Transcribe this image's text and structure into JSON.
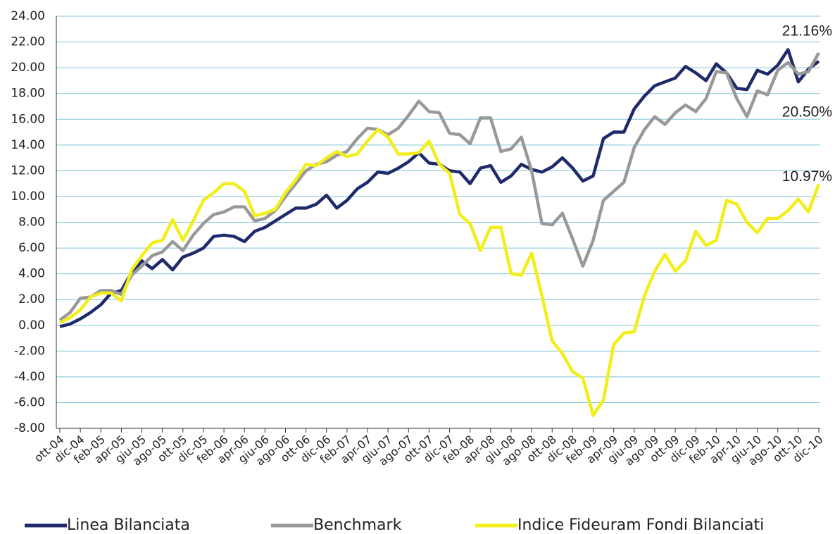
{
  "chart_data": {
    "type": "line",
    "categories": [
      "ott-04",
      null,
      "dic-04",
      null,
      "feb-05",
      null,
      "apr-05",
      null,
      "giu-05",
      null,
      "ago-05",
      null,
      "ott-05",
      null,
      "dic-05",
      null,
      "feb-06",
      null,
      "apr-06",
      null,
      "giu-06",
      null,
      "ago-06",
      null,
      "ott-06",
      null,
      "dic-06",
      null,
      "feb-07",
      null,
      "apr-07",
      null,
      "giu-07",
      null,
      "ago-07",
      null,
      "ott-07",
      null,
      "dic-07",
      null,
      "feb-08",
      null,
      "apr-08",
      null,
      "giu-08",
      null,
      "ago-08",
      null,
      "ott-08",
      null,
      "dic-08",
      null,
      "feb-09",
      null,
      "apr-09",
      null,
      "giu-09",
      null,
      "ago-09",
      null,
      "ott-09",
      null,
      "dic-09",
      null,
      "feb-10",
      null,
      "apr-10",
      null,
      "giu-10",
      null,
      "ago-10",
      null,
      "ott-10",
      null,
      "dic-10"
    ],
    "series": [
      {
        "name": "Linea Bilanciata",
        "color": "#1f2a6b",
        "end_label": "20.50%",
        "values": [
          -0.1,
          0.1,
          0.5,
          1.0,
          1.6,
          2.5,
          2.7,
          4.1,
          5.0,
          4.4,
          5.1,
          4.3,
          5.3,
          5.6,
          6.0,
          6.9,
          7.0,
          6.9,
          6.5,
          7.3,
          7.6,
          8.1,
          8.6,
          9.1,
          9.1,
          9.4,
          10.1,
          9.1,
          9.7,
          10.6,
          11.1,
          11.9,
          11.8,
          12.2,
          12.7,
          13.4,
          12.6,
          12.5,
          12.0,
          11.9,
          11.0,
          12.2,
          12.4,
          11.1,
          11.6,
          12.5,
          12.1,
          11.9,
          12.3,
          13.0,
          12.2,
          11.2,
          11.6,
          14.5,
          15.0,
          15.0,
          16.8,
          17.8,
          18.6,
          18.9,
          19.2,
          20.1,
          19.6,
          19.0,
          20.3,
          19.6,
          18.4,
          18.3,
          19.8,
          19.5,
          20.2,
          21.4,
          18.9,
          19.9,
          20.5
        ]
      },
      {
        "name": "Benchmark",
        "color": "#999999",
        "end_label": "21.16%",
        "values": [
          0.4,
          1.0,
          2.1,
          2.2,
          2.7,
          2.7,
          2.4,
          3.9,
          4.6,
          5.4,
          5.7,
          6.5,
          5.8,
          7.0,
          7.9,
          8.6,
          8.8,
          9.2,
          9.2,
          8.1,
          8.3,
          8.9,
          10.0,
          11.0,
          12.0,
          12.5,
          12.7,
          13.2,
          13.5,
          14.5,
          15.3,
          15.2,
          14.8,
          15.3,
          16.3,
          17.4,
          16.6,
          16.5,
          14.9,
          14.8,
          14.1,
          16.1,
          16.1,
          13.5,
          13.7,
          14.6,
          12.0,
          7.9,
          7.8,
          8.7,
          6.7,
          4.6,
          6.6,
          9.7,
          10.4,
          11.1,
          13.8,
          15.2,
          16.2,
          15.6,
          16.5,
          17.1,
          16.6,
          17.6,
          19.7,
          19.6,
          17.6,
          16.2,
          18.2,
          17.9,
          19.8,
          20.4,
          19.5,
          19.7,
          21.16
        ]
      },
      {
        "name": "Indice Fideuram Fondi Bilanciati",
        "color": "#f2ee1a",
        "end_label": "10.97%",
        "values": [
          0.2,
          0.6,
          1.2,
          2.2,
          2.5,
          2.5,
          1.9,
          4.3,
          5.4,
          6.4,
          6.6,
          8.2,
          6.6,
          8.1,
          9.7,
          10.3,
          11.0,
          11.0,
          10.4,
          8.5,
          8.7,
          9.0,
          10.3,
          11.3,
          12.5,
          12.4,
          13.0,
          13.5,
          13.1,
          13.3,
          14.3,
          15.2,
          14.6,
          13.3,
          13.3,
          13.4,
          14.3,
          12.5,
          11.8,
          8.6,
          7.9,
          5.8,
          7.6,
          7.6,
          4.0,
          3.9,
          5.6,
          2.3,
          -1.2,
          -2.2,
          -3.6,
          -4.1,
          -7.0,
          -5.8,
          -1.5,
          -0.6,
          -0.5,
          2.3,
          4.2,
          5.5,
          4.2,
          5.0,
          7.3,
          6.2,
          6.6,
          9.7,
          9.4,
          8.0,
          7.2,
          8.3,
          8.3,
          8.9,
          9.8,
          8.8,
          10.97
        ]
      }
    ],
    "ylim": [
      -8,
      24
    ],
    "yticks": [
      {
        "value": -8,
        "label": "-8.00"
      },
      {
        "value": -6,
        "label": "-6.00"
      },
      {
        "value": -4,
        "label": "-4.00"
      },
      {
        "value": -2,
        "label": "-2.00"
      },
      {
        "value": 0,
        "label": "0.00"
      },
      {
        "value": 2,
        "label": "2.00"
      },
      {
        "value": 4,
        "label": "4.00"
      },
      {
        "value": 6,
        "label": "6.00"
      },
      {
        "value": 8,
        "label": "8.00"
      },
      {
        "value": 10,
        "label": "10.00"
      },
      {
        "value": 12,
        "label": "12.00"
      },
      {
        "value": 14,
        "label": "14.00"
      },
      {
        "value": 16,
        "label": "16.00"
      },
      {
        "value": 18,
        "label": "18.00"
      },
      {
        "value": 20,
        "label": "20.00"
      },
      {
        "value": 22,
        "label": "22.00"
      },
      {
        "value": 24,
        "label": "24.00"
      }
    ],
    "grid": true,
    "legend": "bottom"
  }
}
